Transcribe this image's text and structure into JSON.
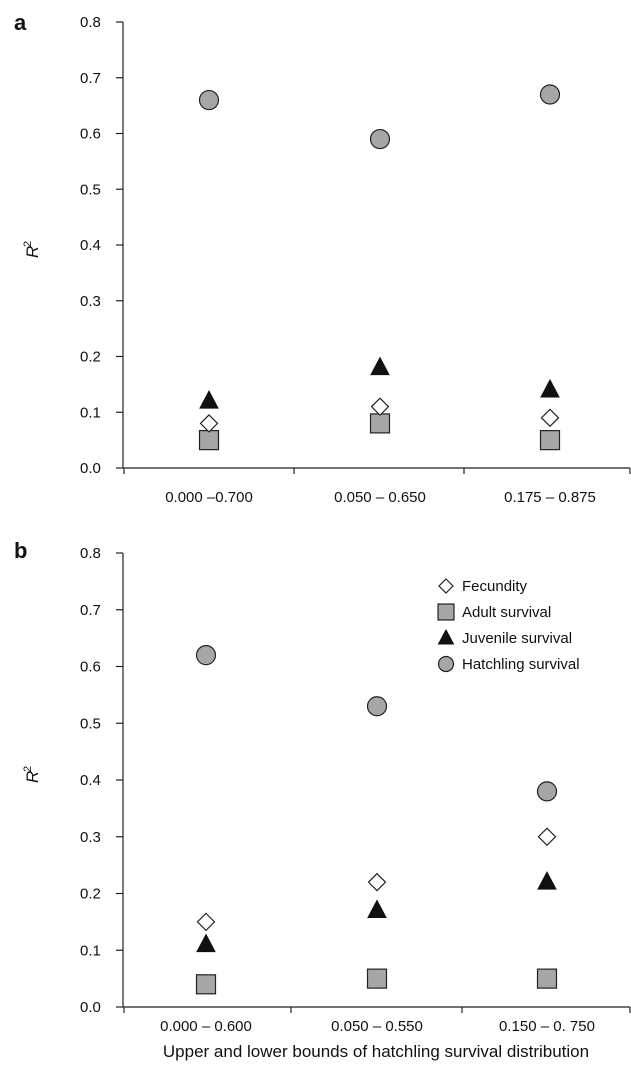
{
  "chart_data": [
    {
      "type": "scatter",
      "panel_label": "a",
      "ylabel": "R",
      "ylabel_sup": "2",
      "ylim": [
        0,
        0.8
      ],
      "yticks": [
        "0.0",
        "0.1",
        "0.2",
        "0.3",
        "0.4",
        "0.5",
        "0.6",
        "0.7",
        "0.8"
      ],
      "categories": [
        "0.000 –0.700",
        "0.050 – 0.650",
        "0.175 – 0.875"
      ],
      "series": [
        {
          "name": "Fecundity",
          "marker": "diamond",
          "values": [
            0.08,
            0.11,
            0.09
          ]
        },
        {
          "name": "Adult survival",
          "marker": "square",
          "values": [
            0.05,
            0.08,
            0.05
          ]
        },
        {
          "name": "Juvenile survival",
          "marker": "triangle",
          "values": [
            0.12,
            0.18,
            0.14
          ]
        },
        {
          "name": "Hatchling survival",
          "marker": "circle",
          "values": [
            0.66,
            0.59,
            0.67
          ]
        }
      ],
      "legend": null,
      "grid": false
    },
    {
      "type": "scatter",
      "panel_label": "b",
      "ylabel": "R",
      "ylabel_sup": "2",
      "xlabel": "Upper and lower bounds of hatchling survival distribution",
      "ylim": [
        0,
        0.8
      ],
      "yticks": [
        "0.0",
        "0.1",
        "0.2",
        "0.3",
        "0.4",
        "0.5",
        "0.6",
        "0.7",
        "0.8"
      ],
      "categories": [
        "0.000 – 0.600",
        "0.050 – 0.550",
        "0.150 – 0. 750"
      ],
      "series": [
        {
          "name": "Fecundity",
          "marker": "diamond",
          "values": [
            0.15,
            0.22,
            0.3
          ]
        },
        {
          "name": "Adult survival",
          "marker": "square",
          "values": [
            0.04,
            0.05,
            0.05
          ]
        },
        {
          "name": "Juvenile survival",
          "marker": "triangle",
          "values": [
            0.11,
            0.17,
            0.22
          ]
        },
        {
          "name": "Hatchling survival",
          "marker": "circle",
          "values": [
            0.62,
            0.53,
            0.38
          ]
        }
      ],
      "legend": "top-right",
      "grid": false
    }
  ],
  "colors": {
    "circle_fill": "#a6a6a6",
    "square_fill": "#a6a6a6",
    "triangle_fill": "#111111",
    "diamond_fill": "#ffffff",
    "stroke": "#222222"
  }
}
